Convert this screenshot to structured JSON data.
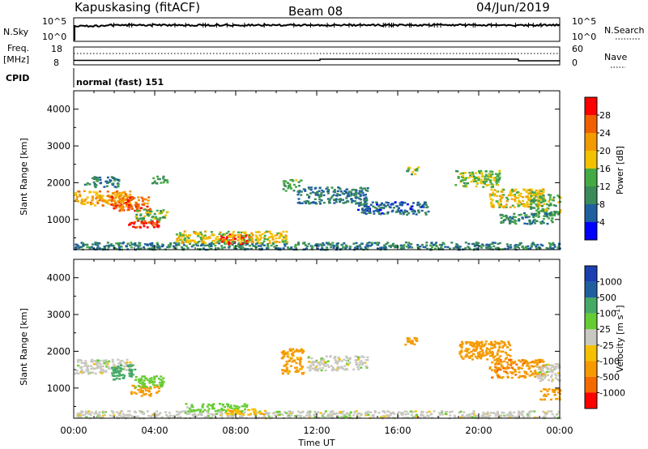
{
  "header": {
    "station": "Kapuskasing (fitACF)",
    "beam": "Beam 08",
    "date": "04/Jun/2019"
  },
  "top_panels": {
    "nsky_label": "N.Sky",
    "nsky_ticks": [
      "10^5",
      "10^0"
    ],
    "nsearch_label": "N.Search",
    "nsearch_ticks": [
      "10^5",
      "10^0"
    ],
    "freq_label": "Freq.",
    "freq_unit": "[MHz]",
    "freq_ticks": [
      "18",
      "8"
    ],
    "nave_label": "Nave",
    "nave_ticks": [
      "60",
      "0"
    ],
    "cpid_label": "CPID",
    "cpid_value": "normal (fast) 151"
  },
  "colors": {
    "power_scale": [
      "#0000ff",
      "#1f5fa0",
      "#3a8a5a",
      "#44aa44",
      "#f2c200",
      "#f29a00",
      "#f06000",
      "#ff0000"
    ],
    "velocity_scale": [
      "#ff0000",
      "#f56a00",
      "#f59a00",
      "#f5c000",
      "#c8c8c0",
      "#66cc33",
      "#44aa66",
      "#1f5fa0",
      "#1a3fb0"
    ]
  },
  "chart_data": [
    {
      "type": "heatmap",
      "panel": "power",
      "xlabel": "Time UT",
      "ylabel": "Slant Range [km]",
      "x_ticks": [
        "00:00",
        "04:00",
        "08:00",
        "12:00",
        "16:00",
        "20:00",
        "00:00"
      ],
      "y_ticks": [
        "1000",
        "2000",
        "3000",
        "4000"
      ],
      "xlim": [
        0,
        24
      ],
      "ylim": [
        180,
        4500
      ],
      "colorbar_label": "Power [dB]",
      "colorbar_ticks": [
        "4",
        "8",
        "12",
        "16",
        "20",
        "24",
        "28"
      ],
      "colorbar_range": [
        0,
        32
      ],
      "regions": [
        {
          "t": [
            0.0,
            2.8
          ],
          "r": [
            1400,
            1800
          ],
          "v": 21
        },
        {
          "t": [
            1.8,
            3.8
          ],
          "r": [
            1250,
            1650
          ],
          "v": 26
        },
        {
          "t": [
            2.6,
            4.2
          ],
          "r": [
            800,
            1000
          ],
          "v": 30
        },
        {
          "t": [
            3.0,
            4.6
          ],
          "r": [
            1000,
            1300
          ],
          "v": 14
        },
        {
          "t": [
            0.5,
            2.2
          ],
          "r": [
            1900,
            2200
          ],
          "v": 9
        },
        {
          "t": [
            3.8,
            4.6
          ],
          "r": [
            2000,
            2200
          ],
          "v": 11
        },
        {
          "t": [
            0.0,
            24.0
          ],
          "r": [
            200,
            400
          ],
          "v": 9
        },
        {
          "t": [
            7.2,
            8.8
          ],
          "r": [
            350,
            620
          ],
          "v": 30
        },
        {
          "t": [
            5.0,
            10.5
          ],
          "r": [
            380,
            700
          ],
          "v": 18
        },
        {
          "t": [
            10.3,
            11.2
          ],
          "r": [
            1800,
            2100
          ],
          "v": 13
        },
        {
          "t": [
            11.0,
            14.5
          ],
          "r": [
            1450,
            1900
          ],
          "v": 8
        },
        {
          "t": [
            14.0,
            17.5
          ],
          "r": [
            1150,
            1500
          ],
          "v": 7
        },
        {
          "t": [
            16.3,
            17.0
          ],
          "r": [
            2250,
            2450
          ],
          "v": 13
        },
        {
          "t": [
            18.8,
            21.0
          ],
          "r": [
            1900,
            2350
          ],
          "v": 15
        },
        {
          "t": [
            20.5,
            23.2
          ],
          "r": [
            1350,
            1850
          ],
          "v": 18
        },
        {
          "t": [
            22.5,
            24.0
          ],
          "r": [
            1100,
            1700
          ],
          "v": 13
        },
        {
          "t": [
            21.0,
            23.6
          ],
          "r": [
            900,
            1200
          ],
          "v": 10
        }
      ]
    },
    {
      "type": "heatmap",
      "panel": "velocity",
      "xlabel": "Time UT",
      "ylabel": "Slant Range [km]",
      "x_ticks": [
        "00:00",
        "04:00",
        "08:00",
        "12:00",
        "16:00",
        "20:00",
        "00:00"
      ],
      "y_ticks": [
        "1000",
        "2000",
        "3000",
        "4000"
      ],
      "xlim": [
        0,
        24
      ],
      "ylim": [
        180,
        4500
      ],
      "colorbar_label": "Velocity [m s^-1]",
      "colorbar_ticks": [
        "1000",
        "500",
        "100",
        "25",
        "-25",
        "-100",
        "-500",
        "-1000"
      ],
      "regions": [
        {
          "t": [
            0.0,
            2.8
          ],
          "r": [
            1400,
            1800
          ],
          "v": 0
        },
        {
          "t": [
            1.8,
            3.0
          ],
          "r": [
            1250,
            1650
          ],
          "v": 200
        },
        {
          "t": [
            2.8,
            4.2
          ],
          "r": [
            800,
            1100
          ],
          "v": -200
        },
        {
          "t": [
            3.0,
            4.4
          ],
          "r": [
            1050,
            1350
          ],
          "v": 60
        },
        {
          "t": [
            0.0,
            24.0
          ],
          "r": [
            200,
            400
          ],
          "v": 0
        },
        {
          "t": [
            5.5,
            8.5
          ],
          "r": [
            380,
            600
          ],
          "v": 50
        },
        {
          "t": [
            7.5,
            9.5
          ],
          "r": [
            300,
            450
          ],
          "v": -80
        },
        {
          "t": [
            10.2,
            11.3
          ],
          "r": [
            1400,
            2100
          ],
          "v": -150
        },
        {
          "t": [
            11.5,
            14.5
          ],
          "r": [
            1500,
            1900
          ],
          "v": 0
        },
        {
          "t": [
            16.3,
            17.0
          ],
          "r": [
            2200,
            2400
          ],
          "v": -200
        },
        {
          "t": [
            19.0,
            21.5
          ],
          "r": [
            1800,
            2300
          ],
          "v": -300
        },
        {
          "t": [
            20.5,
            23.2
          ],
          "r": [
            1300,
            1800
          ],
          "v": -400
        },
        {
          "t": [
            22.8,
            24.0
          ],
          "r": [
            1200,
            1700
          ],
          "v": 0
        },
        {
          "t": [
            23.0,
            24.0
          ],
          "r": [
            700,
            1000
          ],
          "v": -150
        }
      ]
    }
  ]
}
